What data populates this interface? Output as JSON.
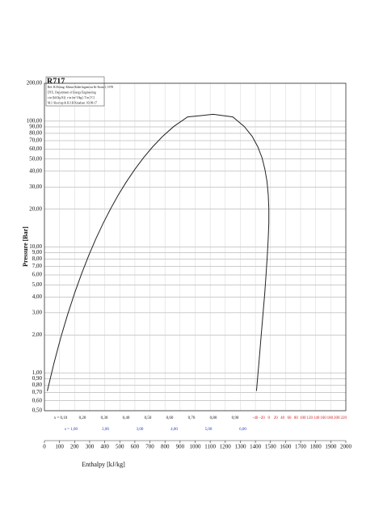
{
  "chart_data": {
    "type": "line",
    "title": "R717",
    "reference_lines": [
      "Ref: R.Döring: Klima+Kälte Ingenieur Ki-Extra 5, 1978",
      "DTU, Department of Energy Engineering",
      "s in [kJ/(kg K)]. v in [m^3/kg]. T in [ºC]",
      "M.J. Skovrup & H.J.H Knudsen. 03-09-17"
    ],
    "x_label": "Enthalpy [kJ/kg]",
    "y_label": "Pressure [Bar]",
    "log_y": true,
    "grid": true,
    "xlim": [
      0,
      2000
    ],
    "xticks": [
      0,
      100,
      200,
      300,
      400,
      500,
      600,
      700,
      800,
      900,
      1000,
      1100,
      1200,
      1300,
      1400,
      1500,
      1600,
      1700,
      1800,
      1900,
      2000
    ],
    "ylim": [
      0.5,
      200
    ],
    "yticks": [
      {
        "value": 0.5,
        "label": "0,50"
      },
      {
        "value": 0.6,
        "label": "0,60"
      },
      {
        "value": 0.7,
        "label": "0,70"
      },
      {
        "value": 0.8,
        "label": "0,80"
      },
      {
        "value": 0.9,
        "label": "0,90"
      },
      {
        "value": 1,
        "label": "1,00"
      },
      {
        "value": 2,
        "label": "2,00"
      },
      {
        "value": 3,
        "label": "3,00"
      },
      {
        "value": 4,
        "label": "4,00"
      },
      {
        "value": 5,
        "label": "5,00"
      },
      {
        "value": 6,
        "label": "6,00"
      },
      {
        "value": 7,
        "label": "7,00"
      },
      {
        "value": 8,
        "label": "8,00"
      },
      {
        "value": 9,
        "label": "9,00"
      },
      {
        "value": 10,
        "label": "10,00"
      },
      {
        "value": 20,
        "label": "20,00"
      },
      {
        "value": 30,
        "label": "30,00"
      },
      {
        "value": 40,
        "label": "40,00"
      },
      {
        "value": 50,
        "label": "50,00"
      },
      {
        "value": 60,
        "label": "60,00"
      },
      {
        "value": 70,
        "label": "70,00"
      },
      {
        "value": 80,
        "label": "80,00"
      },
      {
        "value": 90,
        "label": "90,00"
      },
      {
        "value": 100,
        "label": "100,00"
      },
      {
        "value": 200,
        "label": "200,00"
      }
    ],
    "x": [
      19,
      63,
      108,
      154,
      200,
      247,
      294,
      342,
      391,
      441,
      492,
      545,
      600,
      657,
      718,
      784,
      858,
      950,
      1120,
      1250,
      1326,
      1379,
      1416,
      1444,
      1463,
      1477,
      1485,
      1489,
      1489,
      1485,
      1479,
      1471,
      1462,
      1450,
      1437,
      1423,
      1407
    ],
    "series": [
      {
        "color": "#222222",
        "values": [
          0.717,
          1.19,
          1.9,
          2.91,
          4.29,
          6.15,
          8.57,
          11.67,
          15.55,
          20.33,
          26.15,
          33.12,
          41.4,
          51.1,
          62.5,
          75.6,
          90.7,
          108,
          113.3,
          108,
          90.7,
          75.6,
          62.5,
          51.1,
          41.4,
          33.12,
          26.15,
          20.33,
          15.55,
          11.67,
          8.57,
          6.15,
          4.29,
          2.91,
          1.9,
          1.19,
          0.717
        ]
      }
    ],
    "quality_labels": [
      "x = 0,10",
      "0,20",
      "0,30",
      "0,40",
      "0,50",
      "0,60",
      "0,70",
      "0,80",
      "0,90"
    ],
    "entropy_labels": [
      "s = 1,00",
      "2,00",
      "3,00",
      "4,00",
      "5,00",
      "6,00"
    ],
    "temperature_labels": [
      "-40",
      "-20",
      "0",
      "20",
      "40",
      "60",
      "80",
      "100",
      "120",
      "140",
      "160",
      "180",
      "200",
      "220"
    ]
  }
}
